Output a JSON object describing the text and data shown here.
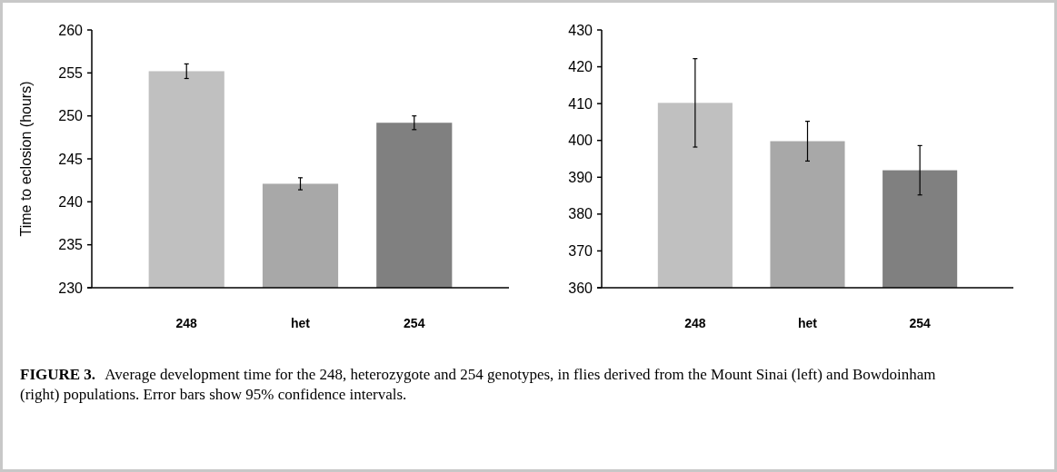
{
  "chart_data": [
    {
      "type": "bar",
      "ylabel": "Time to eclosion (hours)",
      "categories": [
        "248",
        "het",
        "254"
      ],
      "values": [
        255.2,
        242.1,
        249.2
      ],
      "errors": [
        0.85,
        0.7,
        0.8
      ],
      "colors": [
        "#c0c0c0",
        "#a8a8a8",
        "#808080"
      ],
      "ylim": [
        230,
        260
      ],
      "yticks": [
        230,
        235,
        240,
        245,
        250,
        255,
        260
      ],
      "annotations": [
        "FIGURE 3.",
        "Average development time for the 248, heterozygote and 254 genotypes, in flies derived from the Mount Sinai (left) and Bowdoinham (right) populations. Error bars show 95% confidence intervals."
      ]
    },
    {
      "type": "bar",
      "categories": [
        "248",
        "het",
        "254"
      ],
      "values": [
        410.2,
        399.8,
        391.9
      ],
      "errors": [
        12,
        5.4,
        6.7
      ],
      "colors": [
        "#c0c0c0",
        "#a8a8a8",
        "#808080"
      ],
      "ylim": [
        360,
        430
      ],
      "yticks": [
        360,
        370,
        380,
        390,
        400,
        410,
        420,
        430
      ]
    }
  ]
}
